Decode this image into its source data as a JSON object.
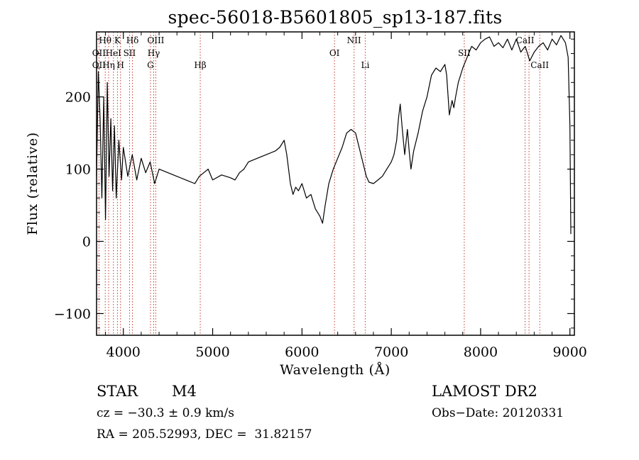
{
  "chart_data": {
    "type": "line",
    "title": "spec-56018-B5601805_sp13-187.fits",
    "xlabel": "Wavelength (Å)",
    "ylabel": "Flux (relative)",
    "xlim": [
      3700,
      9050
    ],
    "ylim": [
      -130,
      290
    ],
    "xticks": [
      4000,
      5000,
      6000,
      7000,
      8000,
      9000
    ],
    "yticks": [
      -100,
      0,
      100,
      200
    ],
    "grid": false,
    "series": [
      {
        "x": [
          3700,
          3720,
          3740,
          3760,
          3780,
          3800,
          3820,
          3840,
          3860,
          3880,
          3900,
          3920,
          3950,
          3980,
          4000,
          4050,
          4100,
          4150,
          4200,
          4250,
          4300,
          4350,
          4400,
          4500,
          4600,
          4700,
          4800,
          4850,
          4900,
          4950,
          5000,
          5100,
          5150,
          5200,
          5250,
          5300,
          5350,
          5400,
          5500,
          5600,
          5700,
          5750,
          5800,
          5830,
          5870,
          5900,
          5930,
          5960,
          6000,
          6050,
          6100,
          6150,
          6200,
          6230,
          6260,
          6300,
          6350,
          6400,
          6450,
          6500,
          6550,
          6600,
          6650,
          6700,
          6720,
          6750,
          6800,
          6850,
          6900,
          6950,
          7000,
          7030,
          7060,
          7080,
          7100,
          7120,
          7150,
          7180,
          7200,
          7220,
          7250,
          7300,
          7350,
          7400,
          7450,
          7500,
          7550,
          7600,
          7620,
          7650,
          7680,
          7700,
          7720,
          7750,
          7800,
          7850,
          7900,
          7950,
          8000,
          8050,
          8100,
          8150,
          8200,
          8250,
          8300,
          8350,
          8400,
          8450,
          8500,
          8550,
          8600,
          8650,
          8700,
          8750,
          8800,
          8850,
          8900,
          8950,
          8980,
          9000,
          9010
        ],
        "y": [
          90,
          235,
          170,
          60,
          200,
          30,
          220,
          90,
          170,
          70,
          160,
          60,
          140,
          85,
          130,
          90,
          120,
          85,
          115,
          95,
          110,
          80,
          100,
          95,
          90,
          85,
          80,
          90,
          95,
          100,
          85,
          92,
          90,
          88,
          85,
          95,
          100,
          110,
          115,
          120,
          125,
          130,
          140,
          120,
          80,
          65,
          75,
          70,
          80,
          60,
          65,
          45,
          35,
          25,
          50,
          80,
          100,
          115,
          130,
          150,
          155,
          150,
          125,
          100,
          90,
          82,
          80,
          85,
          90,
          100,
          110,
          120,
          140,
          170,
          190,
          160,
          120,
          155,
          125,
          100,
          125,
          150,
          180,
          200,
          230,
          240,
          235,
          245,
          230,
          175,
          195,
          185,
          200,
          220,
          240,
          255,
          270,
          265,
          275,
          280,
          283,
          270,
          275,
          268,
          280,
          265,
          280,
          262,
          270,
          250,
          262,
          270,
          275,
          265,
          280,
          272,
          285,
          275,
          255,
          160,
          10
        ]
      }
    ],
    "line_markers": [
      {
        "label": "Hθ",
        "x": 3797,
        "row": 1
      },
      {
        "label": "K",
        "x": 3934,
        "row": 1
      },
      {
        "label": "Hδ",
        "x": 4102,
        "row": 1
      },
      {
        "label": "OIII",
        "x": 4363,
        "row": 1
      },
      {
        "label": "NII",
        "x": 6583,
        "row": 1
      },
      {
        "label": "CaII",
        "x": 8498,
        "row": 1
      },
      {
        "label": "OII",
        "x": 3727,
        "row": 2
      },
      {
        "label": "HeI",
        "x": 3889,
        "row": 2
      },
      {
        "label": "SII",
        "x": 4069,
        "row": 2
      },
      {
        "label": "Hγ",
        "x": 4340,
        "row": 2
      },
      {
        "label": "OI",
        "x": 6364,
        "row": 2
      },
      {
        "label": "SII",
        "x": 7817,
        "row": 2
      },
      {
        "label": "OII",
        "x": 3727,
        "row": 3
      },
      {
        "label": "Hη",
        "x": 3835,
        "row": 3
      },
      {
        "label": "H",
        "x": 3968,
        "row": 3
      },
      {
        "label": "G",
        "x": 4304,
        "row": 3
      },
      {
        "label": "Hβ",
        "x": 4861,
        "row": 3
      },
      {
        "label": "Li",
        "x": 6708,
        "row": 3
      },
      {
        "label": "CaII",
        "x": 8662,
        "row": 3
      }
    ],
    "marker_lines_x": [
      3727,
      3797,
      3835,
      3889,
      3934,
      3968,
      4069,
      4102,
      4304,
      4340,
      4363,
      4861,
      6364,
      6583,
      6708,
      7817,
      8498,
      8542,
      8662
    ],
    "marker_line_color": "#c0392b",
    "line_color": "#000000"
  },
  "info": {
    "object_class": "STAR",
    "subclass": "M4",
    "survey": "LAMOST DR2",
    "cz": "cz = −30.3 ± 0.9 km/s",
    "obs_date": "Obs−Date: 20120331",
    "coords": "RA = 205.52993, DEC =  31.82157"
  }
}
